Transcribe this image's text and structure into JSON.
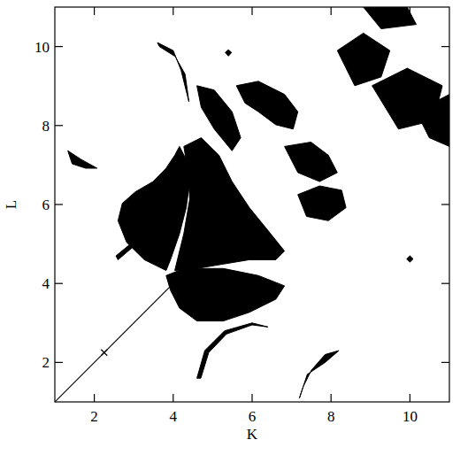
{
  "chart_data": {
    "type": "region",
    "x_label": "K",
    "y_label": "L",
    "xlim": [
      1,
      11
    ],
    "ylim": [
      1,
      11
    ],
    "xticks": [
      2,
      4,
      6,
      8,
      10
    ],
    "yticks": [
      2,
      4,
      6,
      8,
      10
    ],
    "color": "#000000",
    "marker": "cross",
    "line": {
      "x": [
        1,
        4.5
      ],
      "y": [
        1,
        4.5
      ]
    },
    "points": {
      "x": [
        2.25
      ],
      "y": [
        2.25
      ]
    },
    "regions": [
      [
        [
          3.82,
          4.33
        ],
        [
          3.27,
          4.6
        ],
        [
          2.82,
          5.04
        ],
        [
          2.6,
          5.59
        ],
        [
          2.71,
          6.03
        ],
        [
          3.04,
          6.32
        ],
        [
          3.49,
          6.58
        ],
        [
          3.82,
          6.92
        ],
        [
          4.04,
          7.25
        ],
        [
          4.16,
          7.47
        ],
        [
          4.33,
          7.14
        ],
        [
          4.42,
          6.58
        ],
        [
          4.33,
          5.92
        ],
        [
          4.16,
          5.26
        ],
        [
          3.93,
          4.6
        ]
      ],
      [
        [
          4.27,
          7.47
        ],
        [
          4.71,
          7.69
        ],
        [
          5.16,
          7.25
        ],
        [
          5.49,
          6.58
        ],
        [
          5.93,
          5.92
        ],
        [
          6.38,
          5.37
        ],
        [
          6.82,
          4.82
        ],
        [
          6.6,
          4.6
        ],
        [
          5.93,
          4.6
        ],
        [
          5.27,
          4.49
        ],
        [
          4.6,
          4.38
        ],
        [
          4.04,
          4.33
        ],
        [
          4.27,
          5.26
        ],
        [
          4.42,
          6.14
        ],
        [
          4.38,
          6.81
        ]
      ],
      [
        [
          3.82,
          4.2
        ],
        [
          4.27,
          4.38
        ],
        [
          5.27,
          4.38
        ],
        [
          6.16,
          4.2
        ],
        [
          6.82,
          3.94
        ],
        [
          6.6,
          3.6
        ],
        [
          5.93,
          3.27
        ],
        [
          5.27,
          3.05
        ],
        [
          4.6,
          3.05
        ],
        [
          4.16,
          3.38
        ],
        [
          3.93,
          3.83
        ]
      ],
      [
        [
          4.6,
          9.01
        ],
        [
          5.04,
          8.9
        ],
        [
          5.49,
          8.35
        ],
        [
          5.71,
          7.69
        ],
        [
          5.49,
          7.36
        ],
        [
          5.04,
          7.91
        ],
        [
          4.71,
          8.46
        ]
      ],
      [
        [
          5.6,
          9.01
        ],
        [
          6.16,
          9.12
        ],
        [
          6.82,
          8.79
        ],
        [
          7.16,
          8.35
        ],
        [
          7.04,
          7.91
        ],
        [
          6.6,
          8.02
        ],
        [
          6.16,
          8.35
        ],
        [
          5.82,
          8.57
        ]
      ],
      [
        [
          6.82,
          7.47
        ],
        [
          7.49,
          7.58
        ],
        [
          7.93,
          7.25
        ],
        [
          8.16,
          6.81
        ],
        [
          7.71,
          6.58
        ],
        [
          7.16,
          6.81
        ]
      ],
      [
        [
          7.16,
          6.25
        ],
        [
          7.71,
          6.47
        ],
        [
          8.27,
          6.36
        ],
        [
          8.38,
          5.92
        ],
        [
          7.93,
          5.59
        ],
        [
          7.38,
          5.7
        ]
      ],
      [
        [
          8.16,
          9.9
        ],
        [
          8.82,
          10.34
        ],
        [
          9.49,
          9.9
        ],
        [
          9.27,
          9.23
        ],
        [
          8.6,
          9.01
        ]
      ],
      [
        [
          9.04,
          9.01
        ],
        [
          9.93,
          9.45
        ],
        [
          10.82,
          9.01
        ],
        [
          10.6,
          8.13
        ],
        [
          9.71,
          7.91
        ]
      ],
      [
        [
          8.82,
          11.0
        ],
        [
          9.93,
          11.0
        ],
        [
          10.16,
          10.56
        ],
        [
          9.27,
          10.45
        ]
      ],
      [
        [
          10.16,
          8.35
        ],
        [
          11.0,
          8.79
        ],
        [
          11.0,
          7.47
        ],
        [
          10.49,
          7.69
        ]
      ],
      [
        [
          1.33,
          7.36
        ],
        [
          1.67,
          7.14
        ],
        [
          2.07,
          6.92
        ],
        [
          1.78,
          6.92
        ],
        [
          1.44,
          7.03
        ]
      ],
      [
        [
          7.2,
          1.1
        ],
        [
          7.4,
          1.7
        ],
        [
          7.85,
          2.0
        ],
        [
          8.2,
          2.3
        ],
        [
          7.85,
          2.2
        ],
        [
          7.5,
          1.8
        ],
        [
          7.3,
          1.4
        ]
      ],
      [
        [
          5.32,
          9.85
        ],
        [
          5.4,
          9.92
        ],
        [
          5.48,
          9.85
        ],
        [
          5.4,
          9.76
        ]
      ],
      [
        [
          9.92,
          4.62
        ],
        [
          10.0,
          4.7
        ],
        [
          10.08,
          4.62
        ],
        [
          10.0,
          4.54
        ]
      ],
      [
        [
          4.6,
          1.6
        ],
        [
          4.8,
          2.3
        ],
        [
          5.3,
          2.8
        ],
        [
          6.0,
          3.0
        ],
        [
          6.4,
          2.9
        ],
        [
          6.0,
          2.95
        ],
        [
          5.35,
          2.72
        ],
        [
          4.9,
          2.25
        ],
        [
          4.7,
          1.6
        ]
      ],
      [
        [
          2.6,
          4.6
        ],
        [
          3.3,
          5.2
        ],
        [
          3.5,
          5.9
        ],
        [
          3.4,
          6.2
        ],
        [
          3.42,
          5.85
        ],
        [
          3.22,
          5.25
        ],
        [
          2.55,
          4.7
        ]
      ],
      [
        [
          3.6,
          10.1
        ],
        [
          4.0,
          9.9
        ],
        [
          4.2,
          9.4
        ],
        [
          4.4,
          8.6
        ],
        [
          4.3,
          9.3
        ],
        [
          4.05,
          9.75
        ],
        [
          3.65,
          10.0
        ]
      ]
    ]
  }
}
